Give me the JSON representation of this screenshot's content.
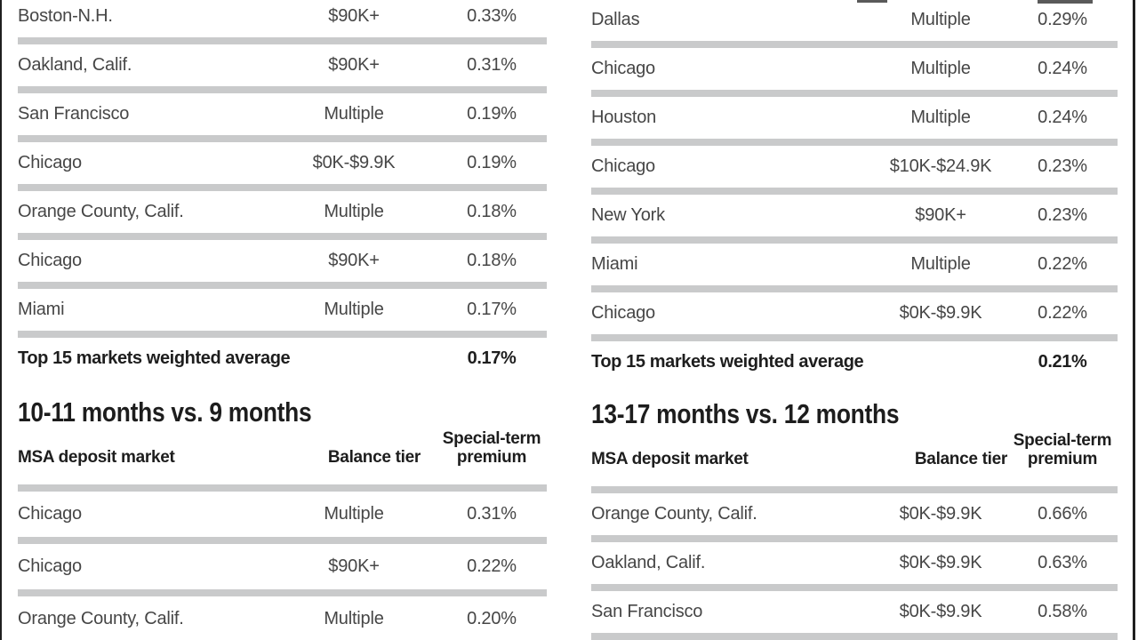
{
  "palette": {
    "background": "#ffffff",
    "separator_gray": "#c9cacb",
    "body_text": "#464646",
    "emphasis_text": "#1e1e1e",
    "border_line": "#1f1f1f"
  },
  "left_column": {
    "continued_table": {
      "rows": [
        {
          "market": "Boston-N.H.",
          "tier": "$90K+",
          "premium": "0.33%"
        },
        {
          "market": "Oakland, Calif.",
          "tier": "$90K+",
          "premium": "0.31%"
        },
        {
          "market": "San Francisco",
          "tier": "Multiple",
          "premium": "0.19%"
        },
        {
          "market": "Chicago",
          "tier": "$0K-$9.9K",
          "premium": "0.19%"
        },
        {
          "market": "Orange County, Calif.",
          "tier": "Multiple",
          "premium": "0.18%"
        },
        {
          "market": "Chicago",
          "tier": "$90K+",
          "premium": "0.18%"
        },
        {
          "market": "Miami",
          "tier": "Multiple",
          "premium": "0.17%"
        }
      ],
      "total": {
        "label": "Top 15 markets weighted average",
        "premium": "0.17%"
      }
    },
    "section": {
      "heading": "10-11 months vs. 9 months",
      "headers": {
        "market": "MSA deposit market",
        "tier": "Balance tier",
        "premium_line1": "Special-term",
        "premium_line2": "premium"
      },
      "rows": [
        {
          "market": "Chicago",
          "tier": "Multiple",
          "premium": "0.31%"
        },
        {
          "market": "Chicago",
          "tier": "$90K+",
          "premium": "0.22%"
        },
        {
          "market": "Orange County, Calif.",
          "tier": "Multiple",
          "premium": "0.20%"
        }
      ]
    }
  },
  "right_column": {
    "continued_table": {
      "rows": [
        {
          "market": "Dallas",
          "tier": "Multiple",
          "premium": "0.29%"
        },
        {
          "market": "Chicago",
          "tier": "Multiple",
          "premium": "0.24%"
        },
        {
          "market": "Houston",
          "tier": "Multiple",
          "premium": "0.24%"
        },
        {
          "market": "Chicago",
          "tier": "$10K-$24.9K",
          "premium": "0.23%"
        },
        {
          "market": "New York",
          "tier": "$90K+",
          "premium": "0.23%"
        },
        {
          "market": "Miami",
          "tier": "Multiple",
          "premium": "0.22%"
        },
        {
          "market": "Chicago",
          "tier": "$0K-$9.9K",
          "premium": "0.22%"
        }
      ],
      "total": {
        "label": "Top 15 markets weighted average",
        "premium": "0.21%"
      }
    },
    "section": {
      "heading": "13-17 months vs. 12 months",
      "headers": {
        "market": "MSA deposit market",
        "tier": "Balance tier",
        "premium_line1": "Special-term",
        "premium_line2": "premium"
      },
      "rows": [
        {
          "market": "Orange County, Calif.",
          "tier": "$0K-$9.9K",
          "premium": "0.66%"
        },
        {
          "market": "Oakland, Calif.",
          "tier": "$0K-$9.9K",
          "premium": "0.63%"
        },
        {
          "market": "San Francisco",
          "tier": "$0K-$9.9K",
          "premium": "0.58%"
        }
      ]
    }
  }
}
